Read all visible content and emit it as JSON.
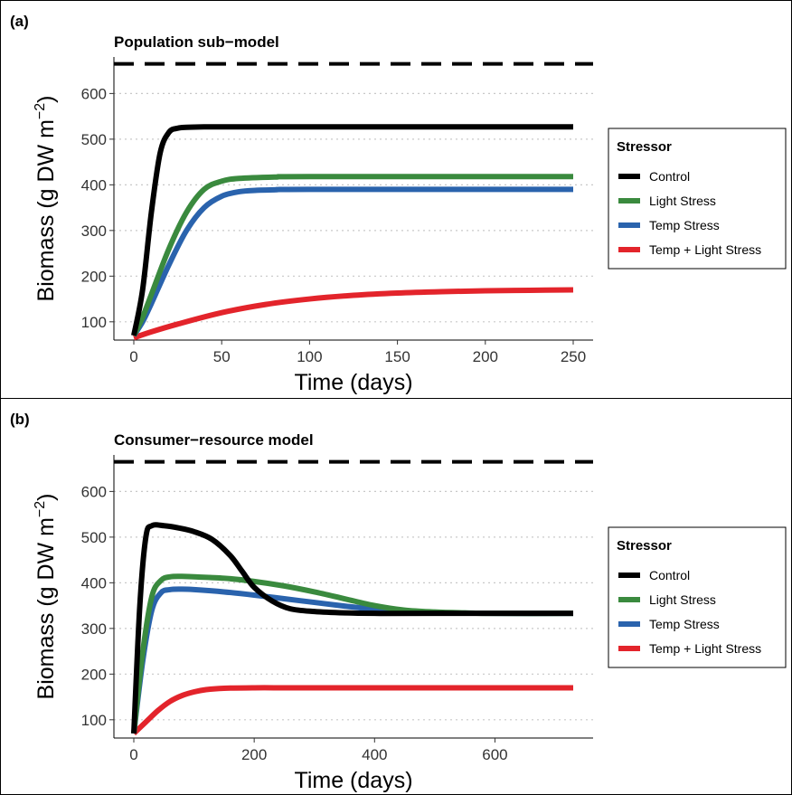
{
  "colors": {
    "control": "#000000",
    "light": "#3a8a3e",
    "temp": "#2a63ad",
    "templight": "#e3242b",
    "dashed": "#000000",
    "grid": "#c8c8c8"
  },
  "legend": {
    "title": "Stressor",
    "entries": [
      "Control",
      "Light Stress",
      "Temp Stress",
      "Temp + Light Stress"
    ]
  },
  "chart_data": [
    {
      "panel_label": "(a)",
      "type": "line",
      "title": "Population sub−model",
      "xlabel": "Time (days)",
      "ylabel_main": "Biomass (g DW m",
      "ylabel_sup": "−2",
      "ylabel_end": ")",
      "xlim": [
        0,
        250
      ],
      "ylim": [
        60,
        680
      ],
      "xticks": [
        0,
        50,
        100,
        150,
        200,
        250
      ],
      "yticks": [
        100,
        200,
        300,
        400,
        500,
        600
      ],
      "hline": 665,
      "grid": "horizontal dotted",
      "legend_position": "right",
      "series": [
        {
          "name": "Control",
          "color_key": "control",
          "x": [
            0,
            5,
            10,
            15,
            20,
            25,
            30,
            40,
            60,
            100,
            250
          ],
          "y": [
            70,
            170,
            340,
            470,
            515,
            524,
            526,
            527,
            527,
            527,
            527
          ]
        },
        {
          "name": "Light Stress",
          "color_key": "light",
          "x": [
            0,
            5,
            10,
            20,
            30,
            40,
            50,
            60,
            80,
            100,
            250
          ],
          "y": [
            70,
            110,
            160,
            260,
            340,
            390,
            408,
            414,
            417,
            418,
            418
          ]
        },
        {
          "name": "Temp Stress",
          "color_key": "temp",
          "x": [
            0,
            5,
            10,
            20,
            30,
            40,
            50,
            60,
            70,
            80,
            100,
            250
          ],
          "y": [
            70,
            100,
            140,
            225,
            300,
            350,
            375,
            385,
            388,
            389,
            390,
            390
          ]
        },
        {
          "name": "Temp + Light Stress",
          "color_key": "templight",
          "x": [
            0,
            10,
            25,
            50,
            75,
            100,
            125,
            150,
            175,
            200,
            225,
            250
          ],
          "y": [
            65,
            78,
            95,
            120,
            138,
            150,
            158,
            163,
            166,
            168,
            169,
            170
          ]
        }
      ]
    },
    {
      "panel_label": "(b)",
      "type": "line",
      "title": "Consumer−resource model",
      "xlabel": "Time (days)",
      "ylabel_main": "Biomass (g DW m",
      "ylabel_sup": "−2",
      "ylabel_end": ")",
      "xlim": [
        0,
        730
      ],
      "ylim": [
        60,
        680
      ],
      "xticks": [
        0,
        200,
        400,
        600
      ],
      "yticks": [
        100,
        200,
        300,
        400,
        500,
        600
      ],
      "hline": 665,
      "grid": "horizontal dotted",
      "legend_position": "right",
      "series": [
        {
          "name": "Control",
          "color_key": "control",
          "x": [
            0,
            10,
            20,
            30,
            50,
            75,
            100,
            130,
            160,
            180,
            200,
            230,
            260,
            300,
            350,
            400,
            500,
            730
          ],
          "y": [
            70,
            350,
            500,
            525,
            525,
            520,
            512,
            495,
            460,
            425,
            390,
            360,
            343,
            337,
            334,
            333,
            333,
            333
          ]
        },
        {
          "name": "Light Stress",
          "color_key": "light",
          "x": [
            0,
            15,
            30,
            45,
            60,
            80,
            100,
            150,
            200,
            250,
            300,
            350,
            400,
            450,
            500,
            550,
            600,
            730
          ],
          "y": [
            70,
            250,
            370,
            405,
            413,
            414,
            413,
            410,
            403,
            393,
            380,
            365,
            350,
            340,
            336,
            334,
            333,
            333
          ]
        },
        {
          "name": "Temp Stress",
          "color_key": "temp",
          "x": [
            0,
            15,
            30,
            45,
            60,
            80,
            100,
            150,
            200,
            250,
            300,
            350,
            400,
            450,
            500,
            600,
            730
          ],
          "y": [
            70,
            230,
            340,
            378,
            385,
            386,
            385,
            380,
            373,
            365,
            357,
            349,
            342,
            337,
            334,
            333,
            333
          ]
        },
        {
          "name": "Temp + Light Stress",
          "color_key": "templight",
          "x": [
            0,
            20,
            40,
            60,
            80,
            100,
            120,
            150,
            200,
            250,
            300,
            400,
            730
          ],
          "y": [
            70,
            95,
            120,
            140,
            153,
            161,
            166,
            169,
            170,
            170,
            170,
            170,
            170
          ]
        }
      ]
    }
  ]
}
